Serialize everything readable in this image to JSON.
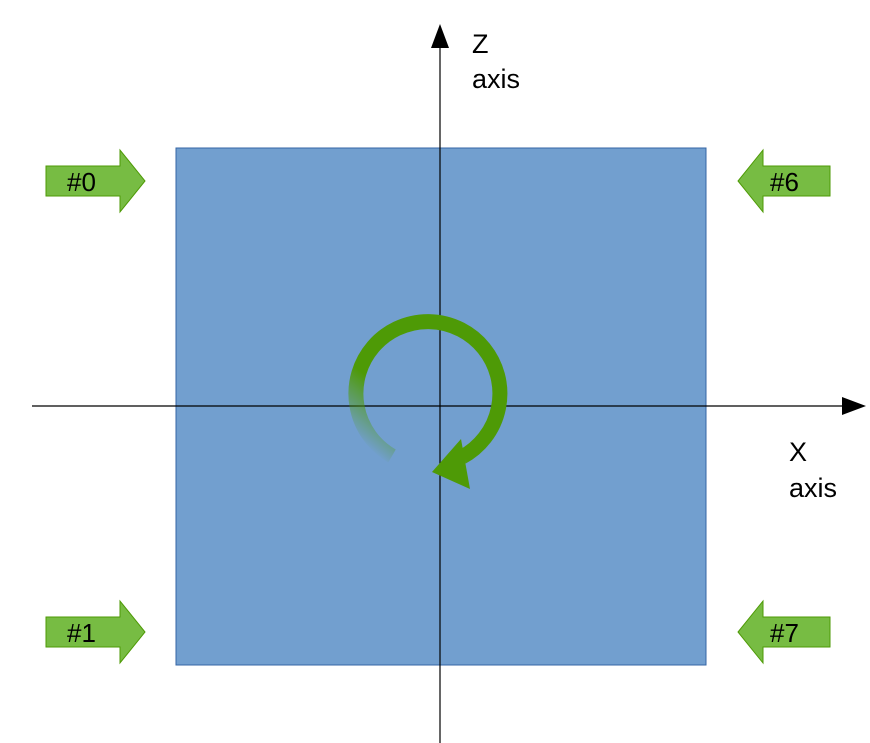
{
  "axes": {
    "z_label_line1": "Z",
    "z_label_line2": "axis",
    "x_label_line1": "X",
    "x_label_line2": "axis"
  },
  "markers": [
    {
      "label": "#0",
      "direction": "right"
    },
    {
      "label": "#1",
      "direction": "right"
    },
    {
      "label": "#6",
      "direction": "left"
    },
    {
      "label": "#7",
      "direction": "left"
    }
  ],
  "rotation": {
    "direction": "clockwise"
  },
  "colors": {
    "plate": "#729fcf",
    "plate_border": "#3465a4",
    "marker_fill": "#77bc43",
    "marker_border": "#4e9a06",
    "rotation_arrow": "#4e9a06",
    "axis": "#000000"
  }
}
